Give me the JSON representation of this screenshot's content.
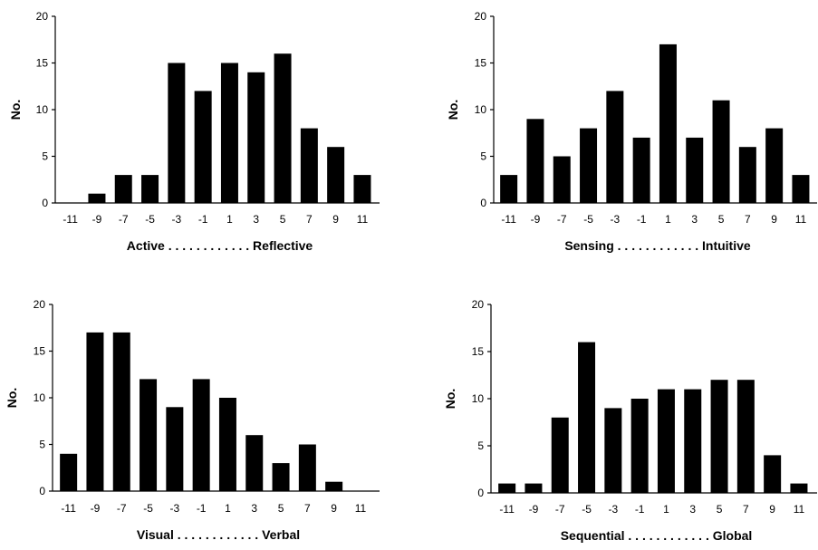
{
  "chart_data": [
    {
      "type": "bar",
      "categories": [
        "-11",
        "-9",
        "-7",
        "-5",
        "-3",
        "-1",
        "1",
        "3",
        "5",
        "7",
        "9",
        "11"
      ],
      "values": [
        0,
        1,
        3,
        3,
        15,
        12,
        15,
        14,
        16,
        8,
        6,
        3
      ],
      "xlabel": "Active . . . . . . . . . . . . Reflective",
      "ylabel": "No.",
      "ylim": [
        0,
        20
      ],
      "yticks": [
        "0",
        "5",
        "10",
        "15",
        "20"
      ],
      "grid": false
    },
    {
      "type": "bar",
      "categories": [
        "-11",
        "-9",
        "-7",
        "-5",
        "-3",
        "-1",
        "1",
        "3",
        "5",
        "7",
        "9",
        "11"
      ],
      "values": [
        3,
        9,
        5,
        8,
        12,
        7,
        17,
        7,
        11,
        6,
        8,
        3
      ],
      "xlabel": "Sensing . . . . . . . . . . . . Intuitive",
      "ylabel": "No.",
      "ylim": [
        0,
        20
      ],
      "yticks": [
        "0",
        "5",
        "10",
        "15",
        "20"
      ],
      "grid": false
    },
    {
      "type": "bar",
      "categories": [
        "-11",
        "-9",
        "-7",
        "-5",
        "-3",
        "-1",
        "1",
        "3",
        "5",
        "7",
        "9",
        "11"
      ],
      "values": [
        4,
        17,
        17,
        12,
        9,
        12,
        10,
        6,
        3,
        5,
        1,
        0
      ],
      "xlabel": "Visual . . . . . . . . . . . . Verbal",
      "ylabel": "No.",
      "ylim": [
        0,
        20
      ],
      "yticks": [
        "0",
        "5",
        "10",
        "15",
        "20"
      ],
      "grid": false
    },
    {
      "type": "bar",
      "categories": [
        "-11",
        "-9",
        "-7",
        "-5",
        "-3",
        "-1",
        "1",
        "3",
        "5",
        "7",
        "9",
        "11"
      ],
      "values": [
        1,
        1,
        8,
        16,
        9,
        10,
        11,
        11,
        12,
        12,
        4,
        1
      ],
      "xlabel": "Sequential . . . . . . . . . . . . Global",
      "ylabel": "No.",
      "ylim": [
        0,
        20
      ],
      "yticks": [
        "0",
        "5",
        "10",
        "15",
        "20"
      ],
      "grid": false
    }
  ]
}
